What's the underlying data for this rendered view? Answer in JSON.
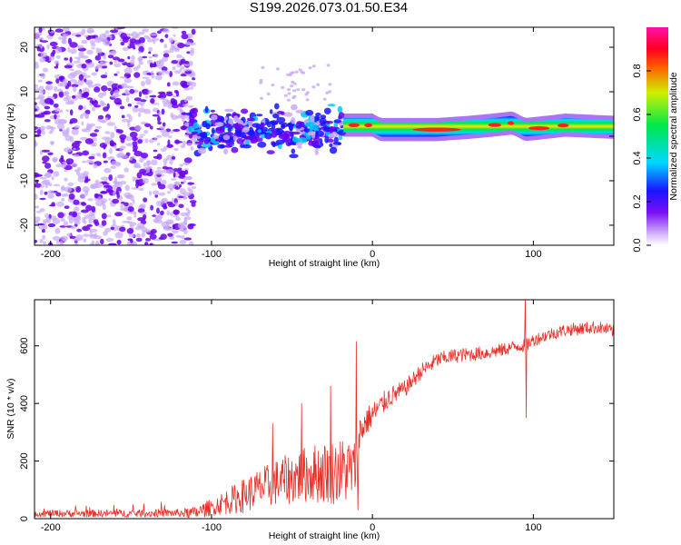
{
  "figure_title": "S199.2026.073.01.50.E34",
  "colors": {
    "snr_line": "#e8302a",
    "frame": "#000000",
    "noise_dark": "#6a00f0",
    "noise_light": "#c8a8f8"
  },
  "chart_data": [
    {
      "type": "heatmap",
      "title": "S199.2026.073.01.50.E34",
      "xlabel": "Height of straight line (km)",
      "ylabel": "Frequency (Hz)",
      "xlim": [
        -210,
        150
      ],
      "ylim": [
        -24.5,
        24.5
      ],
      "xticks": [
        -200,
        -100,
        0,
        100
      ],
      "xtick_labels": [
        "-200",
        "-100",
        "0",
        "100"
      ],
      "yticks": [
        20,
        10,
        0,
        -10,
        -20
      ],
      "ytick_labels": [
        "20",
        "10",
        "0",
        "-10",
        "-20"
      ],
      "colorbar": {
        "label": "Normalized spectral amplitude",
        "range": [
          0,
          1
        ],
        "ticks": [
          0.0,
          0.2,
          0.4,
          0.6,
          0.8
        ],
        "tick_labels": [
          "0.0",
          "0.2",
          "0.4",
          "0.6",
          "0.8"
        ],
        "colormap": "hsv-like (violet-blue-cyan-green-yellow-red-magenta)"
      },
      "regions": [
        {
          "name": "noise",
          "x_range": [
            -210,
            -115
          ],
          "freq_range": [
            -24.5,
            24.5
          ],
          "amplitude": 0.15
        },
        {
          "name": "transition",
          "x_range": [
            -115,
            -18
          ],
          "freq_range": [
            -5,
            8
          ],
          "amplitude": 0.35
        },
        {
          "name": "signal",
          "x_range": [
            -18,
            150
          ],
          "freq_center": [
            [
              -18,
              2.5
            ],
            [
              0,
              2.5
            ],
            [
              5,
              1.5
            ],
            [
              40,
              1.5
            ],
            [
              60,
              2
            ],
            [
              75,
              2.5
            ],
            [
              87,
              3
            ],
            [
              95,
              1.5
            ],
            [
              108,
              2
            ],
            [
              120,
              2.5
            ],
            [
              150,
              2
            ]
          ],
          "amplitude": 0.85
        }
      ]
    },
    {
      "type": "line",
      "title": "",
      "xlabel": "Height of straight line (km)",
      "ylabel": "SNR (10 * v/v)",
      "xlim": [
        -210,
        150
      ],
      "ylim": [
        0,
        760
      ],
      "xticks": [
        -200,
        -100,
        0,
        100
      ],
      "xtick_labels": [
        "-200",
        "-100",
        "0",
        "100"
      ],
      "yticks": [
        0,
        200,
        400,
        600
      ],
      "ytick_labels": [
        "0",
        "200",
        "400",
        "600"
      ],
      "series": [
        {
          "name": "SNR",
          "color": "#e8302a",
          "envelope_x": [
            -210,
            -150,
            -110,
            -100,
            -90,
            -80,
            -70,
            -60,
            -50,
            -40,
            -30,
            -20,
            -12,
            -10,
            -8,
            -5,
            0,
            10,
            20,
            30,
            40,
            50,
            60,
            70,
            80,
            90,
            95,
            100,
            110,
            120,
            130,
            140,
            150
          ],
          "envelope_y": [
            18,
            18,
            20,
            40,
            60,
            80,
            105,
            125,
            140,
            155,
            160,
            165,
            170,
            190,
            290,
            330,
            360,
            420,
            450,
            510,
            550,
            565,
            570,
            575,
            585,
            600,
            600,
            620,
            640,
            655,
            660,
            665,
            650
          ],
          "noise_amplitude_x": [
            -210,
            -120,
            -100,
            -80,
            -50,
            -30,
            -15,
            -5,
            0,
            20,
            50,
            100,
            150
          ],
          "noise_amplitude_y": [
            12,
            14,
            30,
            60,
            90,
            110,
            120,
            55,
            45,
            30,
            25,
            22,
            22
          ],
          "spikes": [
            {
              "x": -10,
              "y": 615
            },
            {
              "x": -9,
              "y": 30
            },
            {
              "x": -26,
              "y": 460
            },
            {
              "x": -44,
              "y": 400
            },
            {
              "x": -62,
              "y": 330
            },
            {
              "x": 95,
              "y": 775
            },
            {
              "x": 95.6,
              "y": 350
            }
          ]
        }
      ]
    }
  ]
}
